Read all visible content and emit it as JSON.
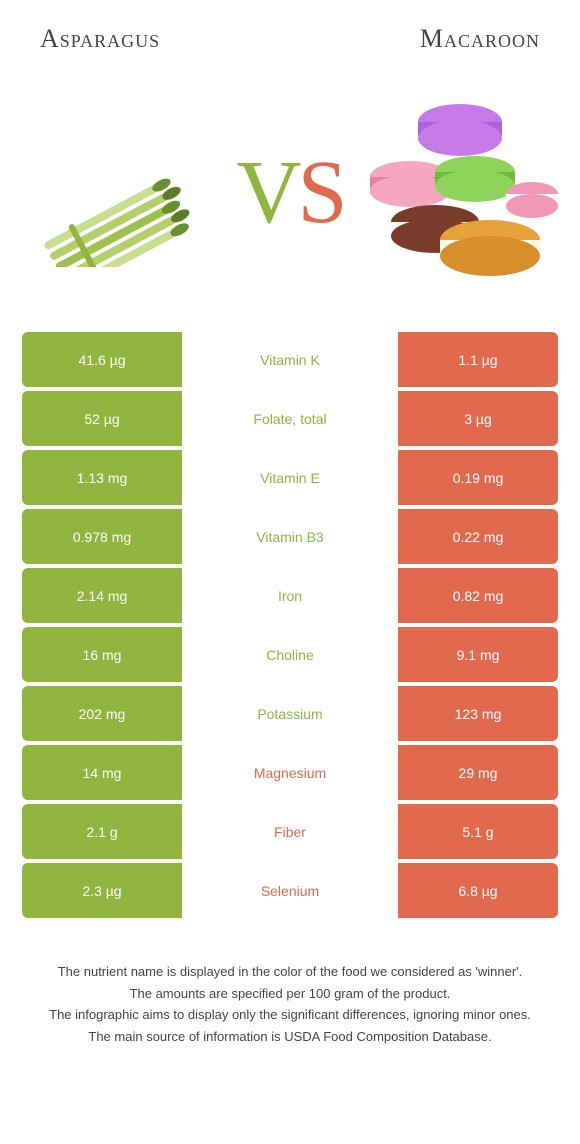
{
  "colors": {
    "green": "#8fb53f",
    "orange": "#e1694e",
    "text": "#444444",
    "white": "#ffffff"
  },
  "header": {
    "left": "Asparagus",
    "right": "Macaroon"
  },
  "vs": {
    "v": "V",
    "s": "S"
  },
  "rows": [
    {
      "left": "41.6 µg",
      "mid": "Vitamin K",
      "right": "1.1 µg",
      "winner": "left"
    },
    {
      "left": "52 µg",
      "mid": "Folate, total",
      "right": "3 µg",
      "winner": "left"
    },
    {
      "left": "1.13 mg",
      "mid": "Vitamin E",
      "right": "0.19 mg",
      "winner": "left"
    },
    {
      "left": "0.978 mg",
      "mid": "Vitamin B3",
      "right": "0.22 mg",
      "winner": "left"
    },
    {
      "left": "2.14 mg",
      "mid": "Iron",
      "right": "0.82 mg",
      "winner": "left"
    },
    {
      "left": "16 mg",
      "mid": "Choline",
      "right": "9.1 mg",
      "winner": "left"
    },
    {
      "left": "202 mg",
      "mid": "Potassium",
      "right": "123 mg",
      "winner": "left"
    },
    {
      "left": "14 mg",
      "mid": "Magnesium",
      "right": "29 mg",
      "winner": "right"
    },
    {
      "left": "2.1 g",
      "mid": "Fiber",
      "right": "5.1 g",
      "winner": "right"
    },
    {
      "left": "2.3 µg",
      "mid": "Selenium",
      "right": "6.8 µg",
      "winner": "right"
    }
  ],
  "footer": {
    "l1": "The nutrient name is displayed in the color of the food we considered as 'winner'.",
    "l2": "The amounts are specified per 100 gram of the product.",
    "l3": "The infographic aims to display only the significant differences, ignoring minor ones.",
    "l4": "The main source of information is USDA Food Composition Database."
  }
}
